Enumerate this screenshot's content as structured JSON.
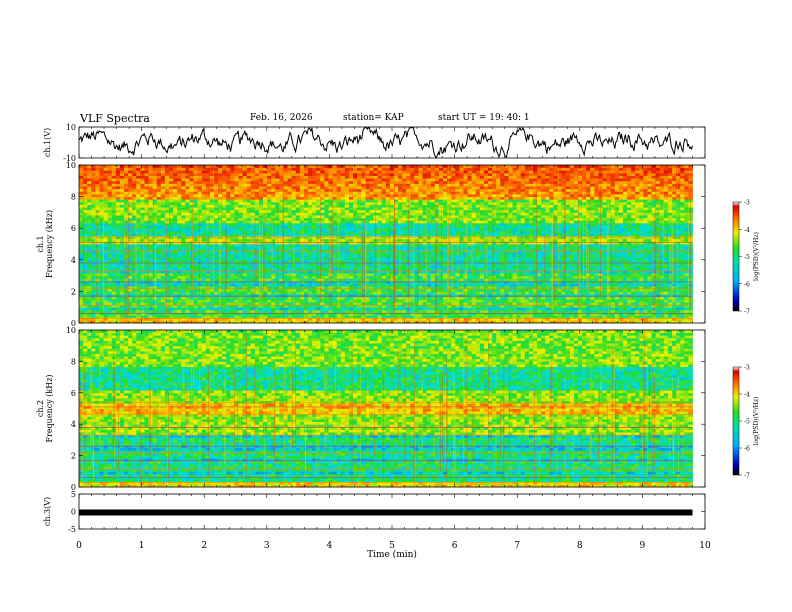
{
  "header": {
    "title": "VLF Spectra",
    "date": "Feb. 16, 2026",
    "station": "station= KAP",
    "start_ut": "start  UT =    19: 40: 1"
  },
  "colors": {
    "axis": "#000000",
    "trace": "#000000",
    "spectrum_min": "#0000a0",
    "spectrum_mid": "#00e040",
    "spectrum_max": "#e00000"
  },
  "chart_data": [
    {
      "type": "line",
      "panel": "ch1-waveform",
      "ylabel": "ch.1(V)",
      "ylim": [
        -10,
        10
      ],
      "yticks": [
        "10",
        "-10"
      ],
      "xlim": [
        0,
        10
      ],
      "series": [
        {
          "name": "ch.1",
          "description": "noisy waveform oscillating roughly between -5 and +6 V"
        }
      ]
    },
    {
      "type": "heatmap",
      "panel": "ch1-spectrogram",
      "ylabel": "ch.1\nFrequency (kHz)",
      "ylim": [
        0,
        10
      ],
      "yticks": [
        "0",
        "2",
        "4",
        "6",
        "8",
        "10"
      ],
      "xlim": [
        0,
        9.8
      ],
      "dominant_band_kHz": [
        [
          0,
          3.5,
          "green/cyan"
        ],
        [
          3.5,
          6.5,
          "cyan/green"
        ],
        [
          6.5,
          10,
          "yellow/red"
        ]
      ],
      "colorbar": {
        "label": "log(PSD)(V²/Hz)",
        "range": [
          -7,
          -3
        ],
        "ticks": [
          "-3",
          "-4",
          "-5",
          "-6",
          "-7"
        ]
      }
    },
    {
      "type": "heatmap",
      "panel": "ch2-spectrogram",
      "ylabel": "ch.2\nFrequency (kHz)",
      "ylim": [
        0,
        10
      ],
      "yticks": [
        "0",
        "2",
        "4",
        "6",
        "8",
        "10"
      ],
      "xlim": [
        0,
        9.8
      ],
      "dominant_band_kHz": [
        [
          0,
          3.5,
          "green/cyan"
        ],
        [
          3.5,
          6.5,
          "yellow/green"
        ],
        [
          6.5,
          10,
          "green/yellow"
        ]
      ],
      "colorbar": {
        "label": "log(PSD)(V²/Hz)",
        "range": [
          -7,
          -3
        ],
        "ticks": [
          "-3",
          "-4",
          "-5",
          "-6",
          "-7"
        ]
      }
    },
    {
      "type": "line",
      "panel": "ch3-waveform",
      "ylabel": "ch.3(V)",
      "ylim": [
        -5,
        5
      ],
      "yticks": [
        "5",
        "0",
        "-5"
      ],
      "xlim": [
        0,
        10
      ],
      "xlabel": "Time (min)",
      "xticks": [
        "0",
        "1",
        "2",
        "3",
        "4",
        "5",
        "6",
        "7",
        "8",
        "9",
        "10"
      ],
      "series": [
        {
          "name": "ch.3",
          "description": "flat trace near -0.3 V",
          "value": -0.3
        }
      ]
    }
  ]
}
